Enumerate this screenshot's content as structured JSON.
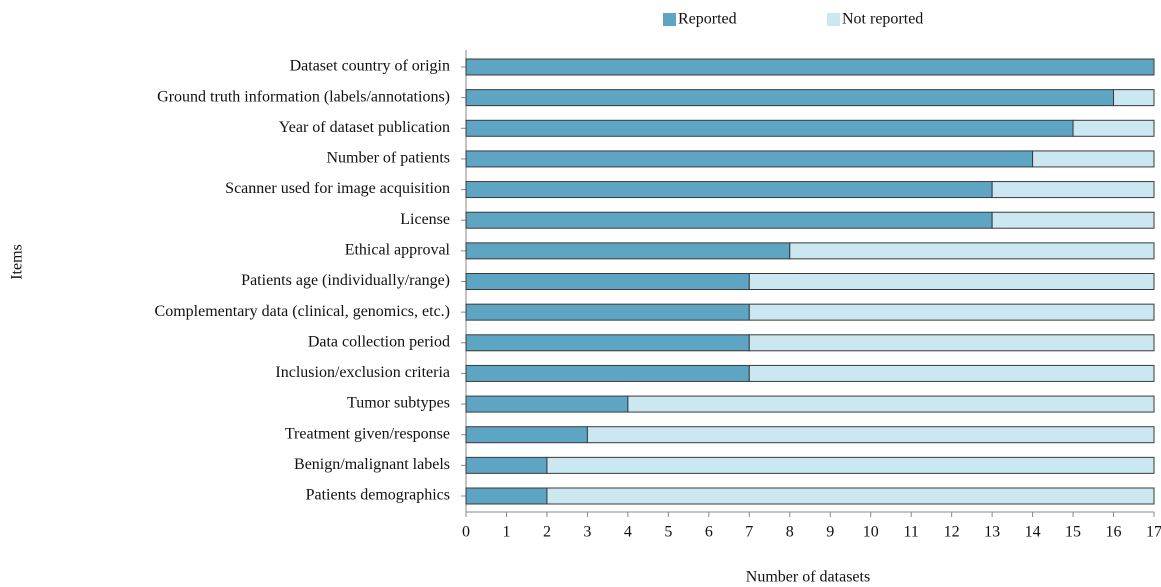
{
  "chart_data": {
    "type": "stacked_barh",
    "y_label": "Items",
    "x_label": "Number of datasets",
    "categories": [
      "Dataset country of origin",
      "Ground truth information (labels/annotations)",
      "Year of dataset publication",
      "Number of patients",
      "Scanner used for image acquisition",
      "License",
      "Ethical approval",
      "Patients age (individually/range)",
      "Complementary data (clinical, genomics, etc.)",
      "Data collection period",
      "Inclusion/exclusion criteria",
      "Tumor subtypes",
      "Treatment given/response",
      "Benign/malignant labels",
      "Patients demographics"
    ],
    "series": [
      {
        "name": "Reported",
        "color": "#5ea5c4",
        "values": [
          17,
          16,
          15,
          14,
          13,
          13,
          8,
          7,
          7,
          7,
          7,
          4,
          3,
          2,
          2
        ]
      },
      {
        "name": "Not reported",
        "color": "#cbe7f1",
        "values": [
          0,
          1,
          2,
          3,
          4,
          4,
          9,
          10,
          10,
          10,
          10,
          13,
          14,
          15,
          15
        ]
      }
    ],
    "xlim": [
      0,
      17
    ],
    "xticks": [
      0,
      1,
      2,
      3,
      4,
      5,
      6,
      7,
      8,
      9,
      10,
      11,
      12,
      13,
      14,
      15,
      16,
      17
    ],
    "legend": "top"
  }
}
